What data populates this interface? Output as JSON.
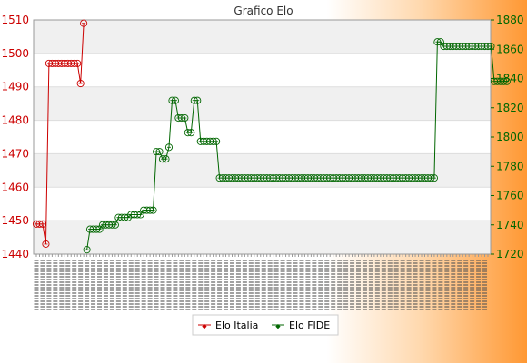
{
  "chart_data": {
    "type": "line",
    "title": "Grafico Elo",
    "xlabel": "",
    "ylabel": "",
    "y_left": {
      "lim": [
        1440,
        1510
      ],
      "ticks": [
        1440,
        1450,
        1460,
        1470,
        1480,
        1490,
        1500,
        1510
      ],
      "color": "#cc0000"
    },
    "y_right": {
      "lim": [
        1720,
        1880
      ],
      "ticks": [
        1720,
        1740,
        1760,
        1780,
        1800,
        1820,
        1840,
        1860,
        1880
      ],
      "color": "#006600"
    },
    "x_count": 144,
    "x_tick_labels_note": "",
    "legend_position": "bottom",
    "grid": true,
    "series": [
      {
        "name": "Elo Italia",
        "axis": "left",
        "color": "#cc0000",
        "x": [
          0,
          1,
          2,
          3,
          4,
          5,
          6,
          7,
          8,
          9,
          10,
          11,
          12,
          13,
          14,
          15
        ],
        "values": [
          1449,
          1449,
          1449,
          1443,
          1497,
          1497,
          1497,
          1497,
          1497,
          1497,
          1497,
          1497,
          1497,
          1497,
          1491,
          1509
        ]
      },
      {
        "name": "Elo FIDE",
        "axis": "right",
        "color": "#006600",
        "x_start": 16,
        "values": [
          1723,
          1737,
          1737,
          1737,
          1737,
          1740,
          1740,
          1740,
          1740,
          1740,
          1745,
          1745,
          1745,
          1745,
          1747,
          1747,
          1747,
          1747,
          1750,
          1750,
          1750,
          1750,
          1790,
          1790,
          1785,
          1785,
          1793,
          1825,
          1825,
          1813,
          1813,
          1813,
          1803,
          1803,
          1825,
          1825,
          1797,
          1797,
          1797,
          1797,
          1797,
          1797,
          1772,
          1772,
          1772,
          1772,
          1772,
          1772,
          1772,
          1772,
          1772,
          1772,
          1772,
          1772,
          1772,
          1772,
          1772,
          1772,
          1772,
          1772,
          1772,
          1772,
          1772,
          1772,
          1772,
          1772,
          1772,
          1772,
          1772,
          1772,
          1772,
          1772,
          1772,
          1772,
          1772,
          1772,
          1772,
          1772,
          1772,
          1772,
          1772,
          1772,
          1772,
          1772,
          1772,
          1772,
          1772,
          1772,
          1772,
          1772,
          1772,
          1772,
          1772,
          1772,
          1772,
          1772,
          1772,
          1772,
          1772,
          1772,
          1772,
          1772,
          1772,
          1772,
          1772,
          1772,
          1772,
          1772,
          1772,
          1772,
          1772,
          1865,
          1865,
          1862,
          1862,
          1862,
          1862,
          1862,
          1862,
          1862,
          1862,
          1862,
          1862,
          1862,
          1862,
          1862,
          1862,
          1862,
          1862,
          1838,
          1838,
          1838,
          1838,
          1838
        ]
      }
    ]
  }
}
